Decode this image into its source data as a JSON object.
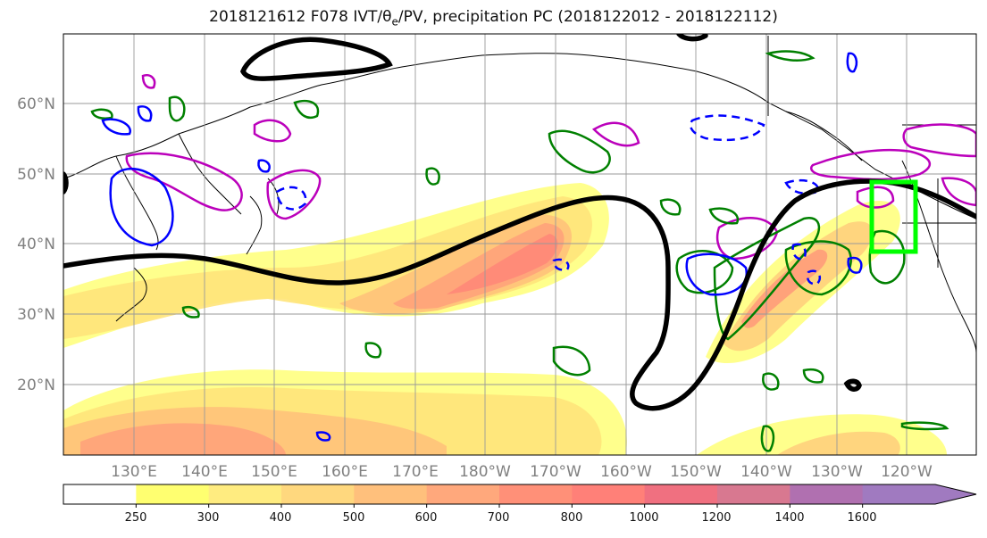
{
  "title": {
    "prefix": "2018121612 F078 IVT/θ",
    "sub": "e",
    "suffix": "/PV, precipitation PC (2018122012 - 2018122112)"
  },
  "lat_labels": [
    "60°N",
    "50°N",
    "40°N",
    "30°N",
    "20°N"
  ],
  "lon_labels": [
    "130°E",
    "140°E",
    "150°E",
    "160°E",
    "170°E",
    "180°W",
    "170°W",
    "160°W",
    "150°W",
    "140°W",
    "130°W",
    "120°W"
  ],
  "colorbar": {
    "ticks": [
      "250",
      "300",
      "400",
      "500",
      "600",
      "700",
      "800",
      "1000",
      "1200",
      "1400",
      "1600"
    ],
    "colors": [
      "#ffffff",
      "#ffff70",
      "#ffec80",
      "#ffd87e",
      "#ffc07c",
      "#ffa87c",
      "#ff9078",
      "#ff8078",
      "#f07080",
      "#d87890",
      "#b070b0",
      "#a07ac0"
    ]
  },
  "colors": {
    "pv_contour": "#000000",
    "theta_e_dashed": "#0000ff",
    "green_contour": "#008000",
    "magenta_contour": "#bb00bb",
    "target_box": "#00ff00"
  }
}
